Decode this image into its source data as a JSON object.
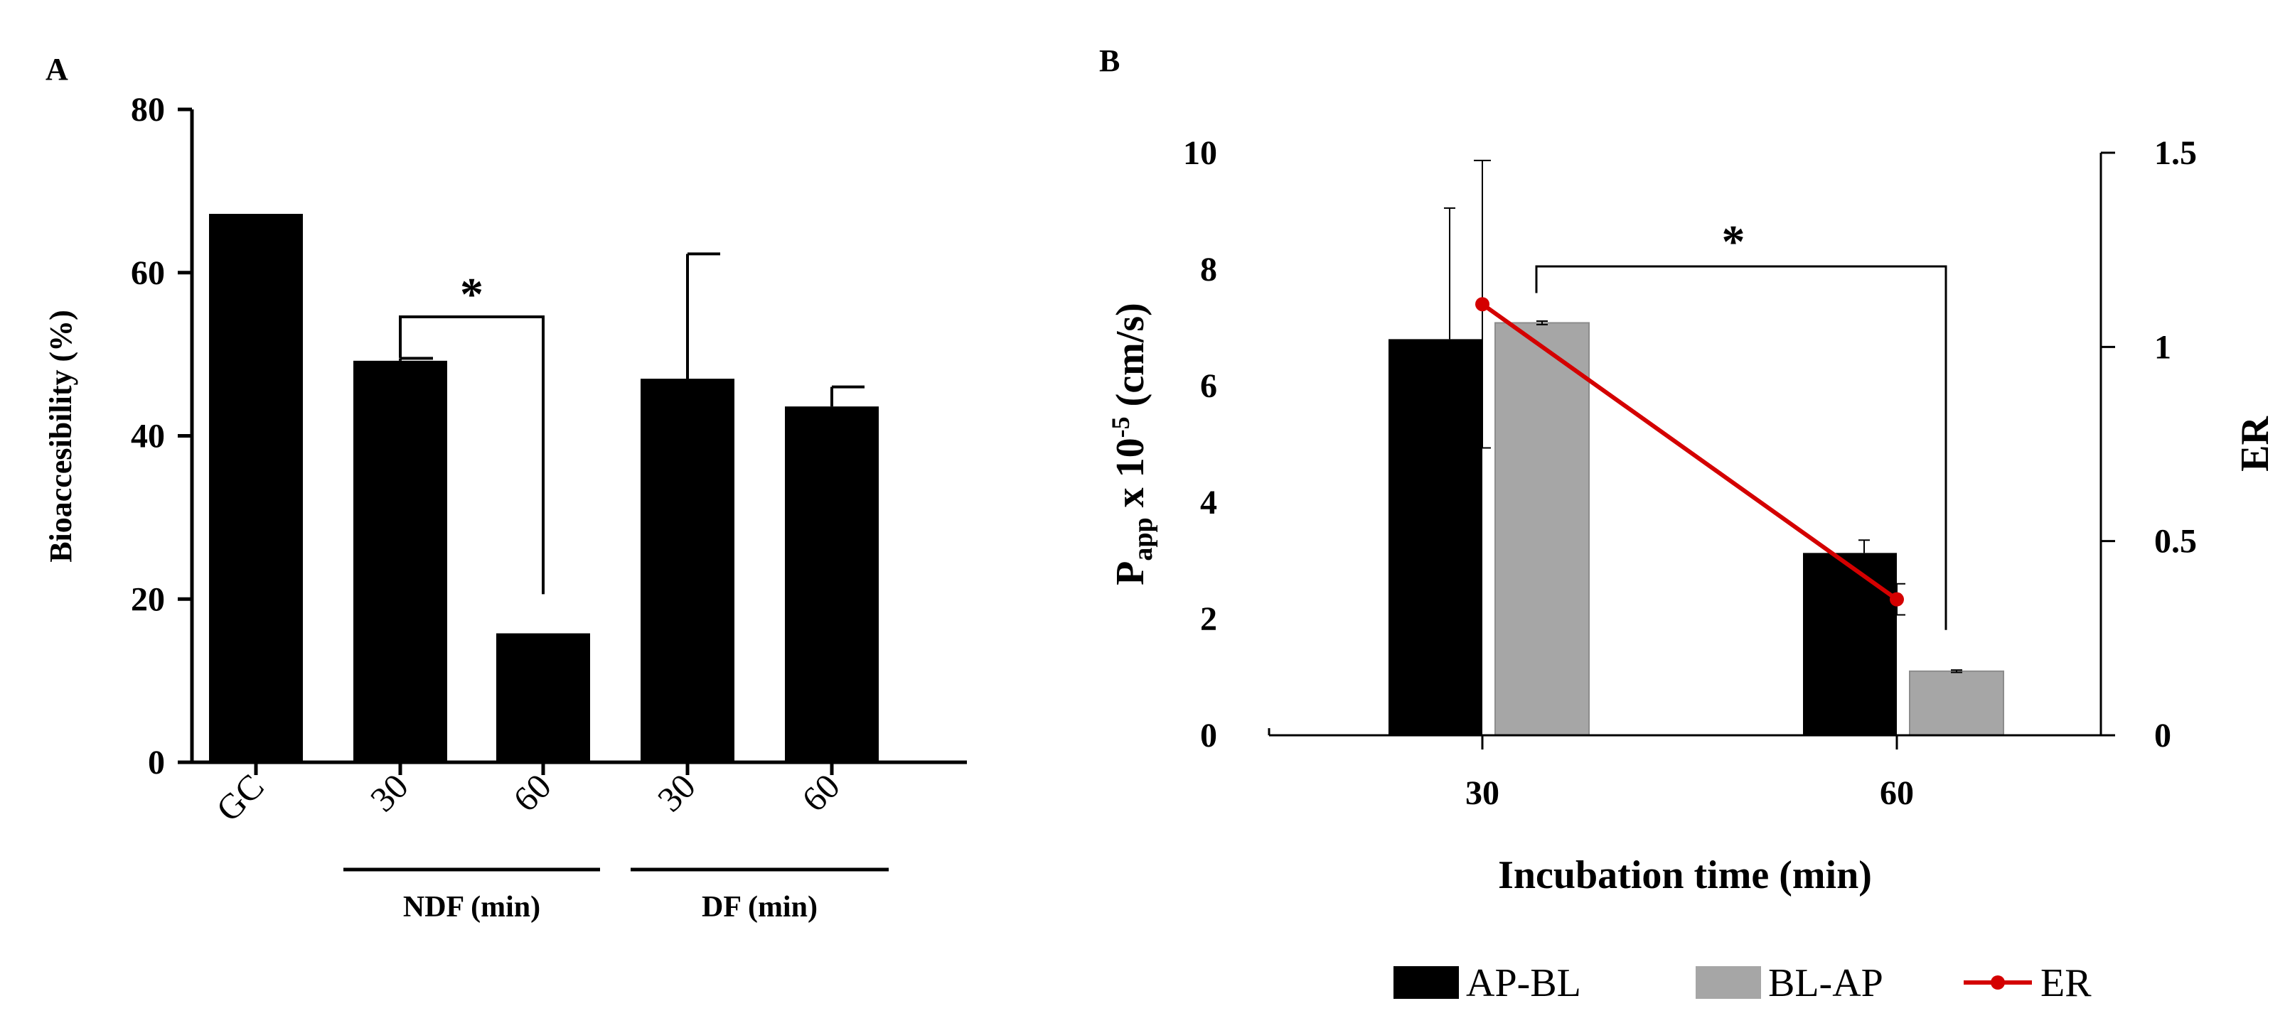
{
  "chart_data": [
    {
      "panel": "A",
      "type": "bar",
      "ylabel": "Bioaccesibility (%)",
      "ylim": [
        0,
        80
      ],
      "yticks": [
        "0",
        "20",
        "40",
        "60",
        "80"
      ],
      "categories": [
        "GC",
        "30",
        "60",
        "30",
        "60"
      ],
      "values": [
        67.2,
        49.2,
        15.8,
        47.0,
        43.6
      ],
      "errors": [
        0,
        0.3,
        0,
        15.3,
        2.4
      ],
      "color": "#000000",
      "groups": [
        {
          "label": "NDF (min)",
          "categories": [
            1,
            2
          ]
        },
        {
          "label": "DF (min)",
          "categories": [
            3,
            4
          ]
        }
      ],
      "significance": {
        "from": 1,
        "to": 2,
        "symbol": "*"
      }
    },
    {
      "panel": "B",
      "type": "bar",
      "xlabel": "Incubation time (min)",
      "ylabel_main": "P",
      "ylabel_sub": "app",
      "ylabel_rest": " x 10",
      "ylabel_sup": "-5",
      "ylabel_unit": " (cm/s)",
      "y2label": "ER",
      "ylim": [
        0,
        10
      ],
      "y2lim": [
        0,
        1.5
      ],
      "yticks": [
        "0",
        "2",
        "4",
        "6",
        "8",
        "10"
      ],
      "y2ticks": [
        "0",
        "0.5",
        "1",
        "1.5"
      ],
      "categories": [
        "30",
        "60"
      ],
      "series": [
        {
          "name": "AP-BL",
          "color": "#000000",
          "values": [
            6.8,
            3.13
          ],
          "errors": [
            2.25,
            0.22
          ]
        },
        {
          "name": "BL-AP",
          "color": "#a6a6a6",
          "values": [
            7.08,
            1.1
          ],
          "errors": [
            0.03,
            0.02
          ]
        },
        {
          "name": "ER",
          "color": "#d40000",
          "axis": "right",
          "type": "line",
          "values": [
            1.11,
            0.35
          ],
          "errors": [
            0.37,
            0.04
          ]
        }
      ],
      "significance": {
        "from": "30",
        "to": "60",
        "symbol": "*"
      }
    }
  ]
}
